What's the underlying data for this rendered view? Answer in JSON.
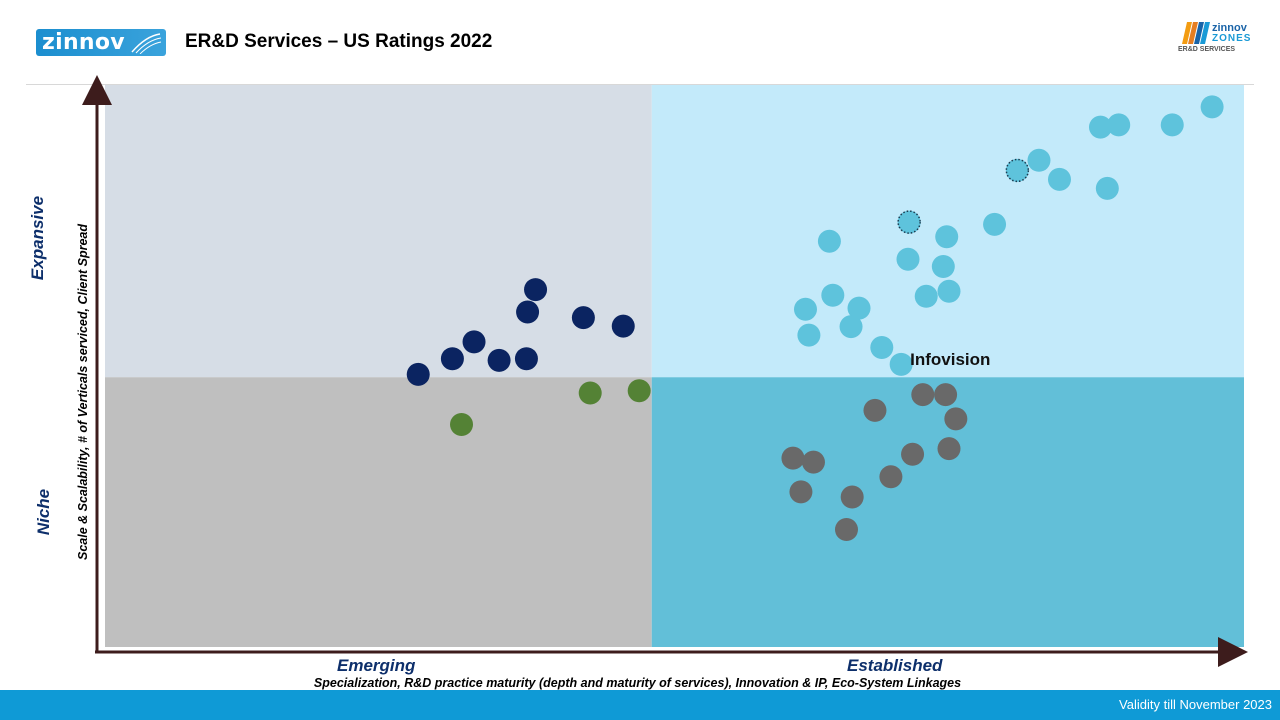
{
  "header": {
    "logo_left_text": "zinnov",
    "title": "ER&D Services – US Ratings 2022",
    "logo_right_line1": "zinnov",
    "logo_right_line2": "ZONES",
    "logo_right_line3": "ER&D SERVICES"
  },
  "footer": {
    "validity": "Validity till November 2023"
  },
  "colors": {
    "quad_top_left": "#d6dde6",
    "quad_top_right": "#c3eafa",
    "quad_bottom_left": "#bfbfbf",
    "quad_bottom_right": "#62bfd8",
    "axis": "#3d1c1c",
    "leader": "#7fcde4",
    "expansive_dot": "#5ec3dc",
    "established_dot": "#696969",
    "emerging_dot": "#0b2461",
    "niche_dot": "#548235"
  },
  "chart_data": {
    "type": "scatter",
    "title": "ER&D Services – US Ratings 2022",
    "xlabel": "Specialization, R&D practice maturity (depth and maturity of services), Innovation & IP, Eco-System Linkages",
    "ylabel": "Scale & Scalability, # of Verticals serviced, Client Spread",
    "x_categories": [
      "Emerging",
      "Established"
    ],
    "y_categories": [
      "Niche",
      "Expansive"
    ],
    "xlim": [
      0,
      100
    ],
    "ylim": [
      0,
      100
    ],
    "x_divider": 48,
    "y_divider": 48,
    "grid": false,
    "annotations": [
      {
        "text": "Infovision",
        "x": 70.6,
        "y": 49.3
      }
    ],
    "series": [
      {
        "key": "top_right",
        "color": "#5ec3dc",
        "points": [
          {
            "x": 97.2,
            "y": 96.1
          },
          {
            "x": 93.7,
            "y": 92.9
          },
          {
            "x": 89.0,
            "y": 92.9
          },
          {
            "x": 87.4,
            "y": 92.5
          },
          {
            "x": 82.0,
            "y": 86.6
          },
          {
            "x": 83.8,
            "y": 83.2
          },
          {
            "x": 80.1,
            "y": 84.8
          },
          {
            "x": 88.0,
            "y": 81.6
          },
          {
            "x": 78.1,
            "y": 75.2
          },
          {
            "x": 70.6,
            "y": 75.6
          },
          {
            "x": 73.9,
            "y": 73.0
          },
          {
            "x": 63.6,
            "y": 72.2
          },
          {
            "x": 70.5,
            "y": 69.0
          },
          {
            "x": 73.6,
            "y": 67.7
          },
          {
            "x": 74.1,
            "y": 63.3
          },
          {
            "x": 72.1,
            "y": 62.4
          },
          {
            "x": 63.9,
            "y": 62.6
          },
          {
            "x": 66.2,
            "y": 60.3
          },
          {
            "x": 61.5,
            "y": 60.1
          },
          {
            "x": 65.5,
            "y": 57.0
          },
          {
            "x": 61.8,
            "y": 55.5
          },
          {
            "x": 68.2,
            "y": 53.3
          },
          {
            "x": 69.9,
            "y": 50.3
          }
        ]
      },
      {
        "key": "highlighted",
        "color": "#5ec3dc",
        "dotted_outline": true,
        "points": [
          {
            "x": 80.1,
            "y": 84.8
          },
          {
            "x": 70.6,
            "y": 75.6
          }
        ]
      },
      {
        "key": "bottom_right",
        "color": "#696969",
        "points": [
          {
            "x": 71.8,
            "y": 44.9
          },
          {
            "x": 73.8,
            "y": 44.9
          },
          {
            "x": 67.6,
            "y": 42.1
          },
          {
            "x": 74.7,
            "y": 40.6
          },
          {
            "x": 74.1,
            "y": 35.3
          },
          {
            "x": 70.9,
            "y": 34.3
          },
          {
            "x": 60.4,
            "y": 33.6
          },
          {
            "x": 62.2,
            "y": 32.9
          },
          {
            "x": 69.0,
            "y": 30.3
          },
          {
            "x": 61.1,
            "y": 27.6
          },
          {
            "x": 65.6,
            "y": 26.7
          },
          {
            "x": 65.1,
            "y": 20.9
          }
        ]
      },
      {
        "key": "top_left",
        "color": "#0b2461",
        "points": [
          {
            "x": 37.8,
            "y": 63.6
          },
          {
            "x": 37.1,
            "y": 59.6
          },
          {
            "x": 42.0,
            "y": 58.6
          },
          {
            "x": 45.5,
            "y": 57.1
          },
          {
            "x": 32.4,
            "y": 54.3
          },
          {
            "x": 30.5,
            "y": 51.3
          },
          {
            "x": 34.6,
            "y": 51.0
          },
          {
            "x": 37.0,
            "y": 51.3
          },
          {
            "x": 27.5,
            "y": 48.5
          }
        ]
      },
      {
        "key": "bottom_left",
        "color": "#548235",
        "points": [
          {
            "x": 46.9,
            "y": 45.6
          },
          {
            "x": 42.6,
            "y": 45.2
          },
          {
            "x": 31.3,
            "y": 39.6
          }
        ]
      }
    ]
  }
}
